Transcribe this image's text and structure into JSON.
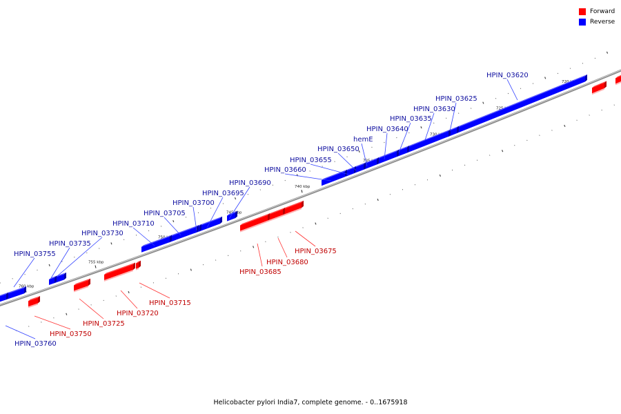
{
  "legend": {
    "forward": {
      "label": "Forward",
      "color": "#ff0000"
    },
    "reverse": {
      "label": "Reverse",
      "color": "#0000ff"
    }
  },
  "caption": "Helicobacter pylori India7, complete genome. - 0..1675918",
  "kbp_ticks": [
    "720 kbp",
    "725 kbp",
    "730 kbp",
    "735 kbp",
    "740 kbp",
    "745 kbp",
    "750 kbp",
    "755 kbp",
    "760 kbp"
  ],
  "genes": [
    {
      "name": "HPIN_03620",
      "strand": "reverse"
    },
    {
      "name": "HPIN_03625",
      "strand": "reverse"
    },
    {
      "name": "HPIN_03630",
      "strand": "reverse"
    },
    {
      "name": "HPIN_03635",
      "strand": "reverse"
    },
    {
      "name": "HPIN_03640",
      "strand": "reverse"
    },
    {
      "name": "hemE",
      "strand": "reverse"
    },
    {
      "name": "HPIN_03650",
      "strand": "reverse"
    },
    {
      "name": "HPIN_03655",
      "strand": "reverse"
    },
    {
      "name": "HPIN_03660",
      "strand": "reverse"
    },
    {
      "name": "HPIN_03690",
      "strand": "reverse"
    },
    {
      "name": "HPIN_03695",
      "strand": "reverse"
    },
    {
      "name": "HPIN_03700",
      "strand": "reverse"
    },
    {
      "name": "HPIN_03705",
      "strand": "reverse"
    },
    {
      "name": "HPIN_03710",
      "strand": "reverse"
    },
    {
      "name": "HPIN_03730",
      "strand": "reverse"
    },
    {
      "name": "HPIN_03735",
      "strand": "reverse"
    },
    {
      "name": "HPIN_03755",
      "strand": "reverse"
    },
    {
      "name": "HPIN_03675",
      "strand": "forward"
    },
    {
      "name": "HPIN_03680",
      "strand": "forward"
    },
    {
      "name": "HPIN_03685",
      "strand": "forward"
    },
    {
      "name": "HPIN_03715",
      "strand": "forward"
    },
    {
      "name": "HPIN_03720",
      "strand": "forward"
    },
    {
      "name": "HPIN_03725",
      "strand": "forward"
    },
    {
      "name": "HPIN_03750",
      "strand": "forward"
    },
    {
      "name": "HPIN_03760",
      "strand": "reverse"
    }
  ]
}
